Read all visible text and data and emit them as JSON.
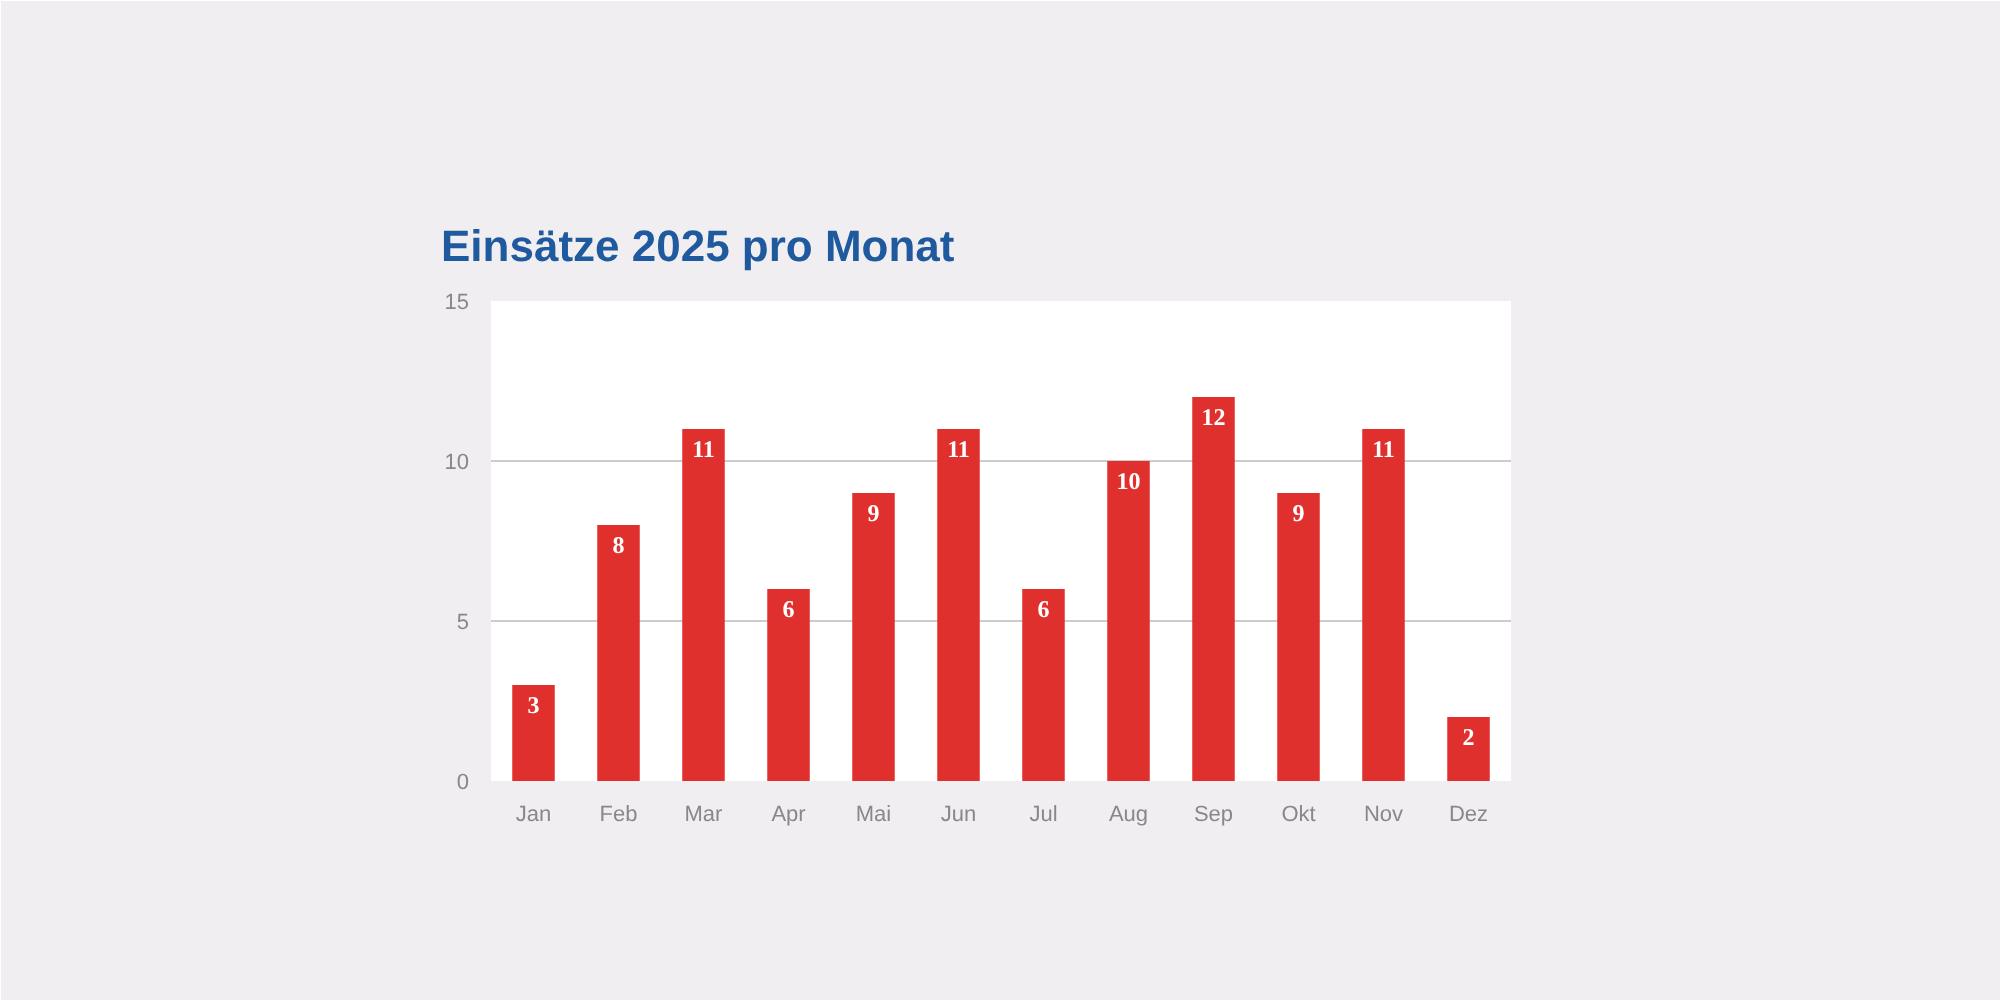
{
  "chart_data": {
    "type": "bar",
    "title": "Einsätze 2025 pro Monat",
    "categories": [
      "Jan",
      "Feb",
      "Mar",
      "Apr",
      "Mai",
      "Jun",
      "Jul",
      "Aug",
      "Sep",
      "Okt",
      "Nov",
      "Dez"
    ],
    "values": [
      3,
      8,
      11,
      6,
      9,
      11,
      6,
      10,
      12,
      9,
      11,
      2
    ],
    "color": "#e0302d",
    "ylim": [
      0,
      15
    ],
    "yticks": [
      0,
      5,
      10,
      15
    ],
    "grid": "y",
    "data_labels": true
  }
}
